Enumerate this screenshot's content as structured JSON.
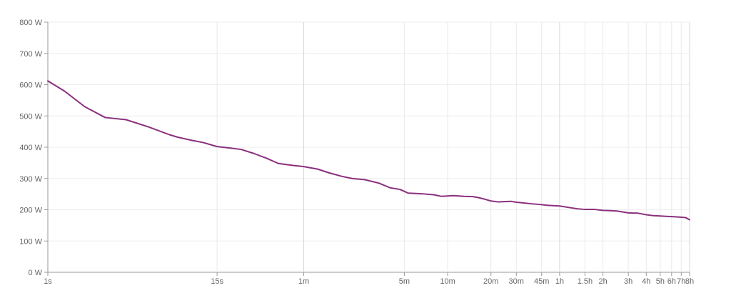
{
  "chart_data": {
    "type": "line",
    "title": "",
    "xlabel": "",
    "ylabel": "",
    "x_scale": "log",
    "x_unit": "seconds",
    "xlim": [
      1,
      28800
    ],
    "ylim": [
      0,
      800
    ],
    "grid": true,
    "legend": "none",
    "line_color": "#8b2f7d",
    "y_ticks": [
      {
        "value": 0,
        "label": "0 W"
      },
      {
        "value": 100,
        "label": "100 W"
      },
      {
        "value": 200,
        "label": "200 W"
      },
      {
        "value": 300,
        "label": "300 W"
      },
      {
        "value": 400,
        "label": "400 W"
      },
      {
        "value": 500,
        "label": "500 W"
      },
      {
        "value": 600,
        "label": "600 W"
      },
      {
        "value": 700,
        "label": "700 W"
      },
      {
        "value": 800,
        "label": "800 W"
      }
    ],
    "x_ticks": [
      {
        "value": 1,
        "label": "1s"
      },
      {
        "value": 15,
        "label": "15s"
      },
      {
        "value": 60,
        "label": "1m"
      },
      {
        "value": 300,
        "label": "5m"
      },
      {
        "value": 600,
        "label": "10m"
      },
      {
        "value": 1200,
        "label": "20m"
      },
      {
        "value": 1800,
        "label": "30m"
      },
      {
        "value": 2700,
        "label": "45m"
      },
      {
        "value": 3600,
        "label": "1h"
      },
      {
        "value": 5400,
        "label": "1.5h"
      },
      {
        "value": 7200,
        "label": "2h"
      },
      {
        "value": 10800,
        "label": "3h"
      },
      {
        "value": 14400,
        "label": "4h"
      },
      {
        "value": 18000,
        "label": "5h"
      },
      {
        "value": 21600,
        "label": "6h"
      },
      {
        "value": 25200,
        "label": "7h"
      },
      {
        "value": 28800,
        "label": "8h"
      }
    ],
    "series": [
      {
        "x": [
          1,
          1.3,
          1.8,
          2.5,
          3.5,
          5,
          7,
          8,
          10,
          12,
          15,
          18,
          22,
          27,
          33,
          40,
          50,
          60,
          75,
          90,
          110,
          130,
          160,
          200,
          240,
          280,
          320,
          360,
          400,
          480,
          540,
          660,
          780,
          900,
          1000,
          1100,
          1200,
          1350,
          1500,
          1650,
          1800,
          2000,
          2300,
          2600,
          3000,
          3600,
          4200,
          4800,
          5400,
          6300,
          7200,
          8100,
          9000,
          10800,
          12600,
          14400,
          16200,
          18000,
          19800,
          21600,
          23400,
          25200,
          27000,
          28800
        ],
        "y": [
          612,
          580,
          530,
          495,
          488,
          465,
          440,
          432,
          422,
          415,
          402,
          398,
          393,
          380,
          365,
          348,
          342,
          338,
          330,
          318,
          307,
          300,
          296,
          285,
          270,
          265,
          253,
          252,
          251,
          248,
          243,
          245,
          243,
          242,
          238,
          233,
          228,
          225,
          226,
          227,
          224,
          222,
          219,
          217,
          214,
          212,
          207,
          203,
          201,
          201,
          198,
          197,
          196,
          190,
          189,
          184,
          181,
          180,
          179,
          178,
          177,
          176,
          175,
          168
        ]
      }
    ]
  }
}
